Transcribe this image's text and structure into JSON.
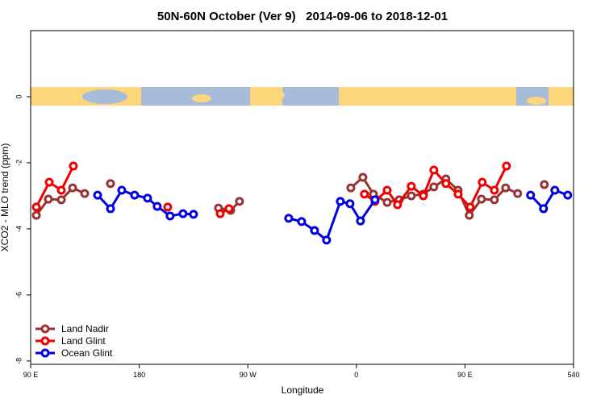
{
  "chart_data": {
    "type": "line",
    "title": "50N-60N October (Ver 9)   2014-09-06 to 2018-12-01",
    "x_label": "Longitude",
    "y_label": "XCO2 - MLO trend (ppm)",
    "xlim": [
      90,
      540
    ],
    "ylim": [
      -8.1,
      2.0
    ],
    "xticks": [
      {
        "value": 90,
        "label": "90 E"
      },
      180,
      {
        "value": 270,
        "label": "90 W"
      },
      {
        "value": 360,
        "label": "0"
      },
      {
        "value": 450,
        "label": "90 E"
      },
      540
    ],
    "yticks": [
      0,
      -2,
      -4,
      -6,
      -8
    ],
    "legend": "bottom-left",
    "series": [
      {
        "name": "Land Nadir",
        "color": "#993333",
        "x": [
          94.7,
          104.7,
          115.4,
          124.8,
          134.8,
          null,
          156.2,
          null,
          245.7,
          255.8,
          263.1,
          null,
          355.4,
          365.4,
          374.1,
          385.5,
          395.5,
          405.5,
          415.5,
          424.2,
          434.2,
          444.3,
          453.6,
          463.7,
          474.4,
          483.7,
          493.7,
          null,
          515.8
        ],
        "values": [
          -3.59,
          -3.1,
          -3.12,
          -2.76,
          -2.93,
          null,
          -2.63,
          null,
          -3.37,
          -3.44,
          -3.17,
          null,
          -2.76,
          -2.44,
          -2.95,
          -3.2,
          -3.12,
          -3.0,
          -2.95,
          -2.73,
          -2.49,
          -2.83,
          -3.59,
          -3.1,
          -3.12,
          -2.76,
          -2.93,
          null,
          -2.66
        ]
      },
      {
        "name": "Land Glint",
        "color": "#ee0000",
        "x": [
          94.7,
          105.4,
          115.4,
          125.4,
          null,
          203.6,
          null,
          247.1,
          254.4,
          null,
          366.7,
          375.4,
          385.5,
          394.1,
          405.5,
          415.5,
          424.2,
          434.2,
          444.3,
          454.3,
          464.3,
          474.4,
          484.4
        ],
        "values": [
          -3.34,
          -2.59,
          -2.83,
          -2.1,
          null,
          -3.34,
          null,
          -3.54,
          -3.39,
          null,
          -2.95,
          -3.17,
          -2.83,
          -3.27,
          -2.71,
          -3.0,
          -2.22,
          -2.63,
          -2.95,
          -3.34,
          -2.59,
          -2.83,
          -2.1
        ]
      },
      {
        "name": "Ocean Glint",
        "color": "#0000dd",
        "x": [
          145.5,
          156.2,
          165.5,
          176.2,
          186.9,
          194.9,
          205.6,
          216.3,
          225.0,
          null,
          303.9,
          314.6,
          325.3,
          335.3,
          346.7,
          354.7,
          363.4,
          375.4,
          null,
          504.4,
          515.1,
          524.5,
          535.2
        ],
        "values": [
          -2.98,
          -3.39,
          -2.83,
          -2.98,
          -3.07,
          -3.32,
          -3.61,
          -3.54,
          -3.56,
          null,
          -3.68,
          -3.78,
          -4.05,
          -4.34,
          -3.17,
          -3.24,
          -3.76,
          -3.12,
          null,
          -2.98,
          -3.39,
          -2.83,
          -2.98
        ]
      }
    ]
  }
}
